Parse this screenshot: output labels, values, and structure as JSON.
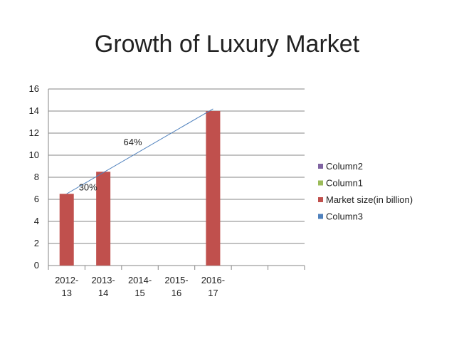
{
  "chart_data": {
    "type": "bar",
    "title": "Growth of Luxury Market",
    "categories": [
      [
        "2012-",
        "13"
      ],
      [
        "2013-",
        "14"
      ],
      [
        "2014-",
        "15"
      ],
      [
        "2015-",
        "16"
      ],
      [
        "2016-",
        "17"
      ],
      [
        "",
        ""
      ],
      [
        "",
        ""
      ]
    ],
    "series": [
      {
        "name": "Column2",
        "color": "#8064A2",
        "values": [
          null,
          null,
          null,
          null,
          null,
          null,
          null
        ]
      },
      {
        "name": "Column1",
        "color": "#9BBB59",
        "values": [
          null,
          null,
          null,
          null,
          null,
          null,
          null
        ]
      },
      {
        "name": "Market size(in billion)",
        "color": "#C0504D",
        "values": [
          6.5,
          8.5,
          null,
          null,
          14,
          null,
          null
        ]
      },
      {
        "name": "Column3",
        "color": "#4F81BD",
        "values": [
          null,
          null,
          null,
          null,
          null,
          null,
          null
        ]
      }
    ],
    "trend_line": {
      "color": "#4F81BD",
      "from": {
        "category": 0,
        "y": 6.5
      },
      "to": {
        "category": 4,
        "y": 14.2
      }
    },
    "annotations": [
      {
        "text": "30%",
        "category": 0,
        "y": 6.8
      },
      {
        "text": "64%",
        "category": 2,
        "y": 10.9
      }
    ],
    "ylim": [
      0,
      16
    ],
    "yticks": [
      0,
      2,
      4,
      6,
      8,
      10,
      12,
      14,
      16
    ],
    "grid": true,
    "legend_position": "right"
  }
}
